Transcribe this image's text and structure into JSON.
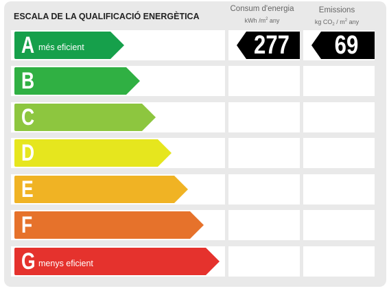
{
  "title": "ESCALA DE LA QUALIFICACIÓ ENERGÈTICA",
  "energy_header": {
    "title": "Consum d'energia",
    "unit_pre": "kWh /m",
    "unit_sup": "2",
    "unit_post": " any"
  },
  "emissions_header": {
    "title": "Emissions",
    "unit_pre": "kg CO",
    "unit_sub": "2",
    "unit_mid": " / m",
    "unit_sup": "2",
    "unit_post": " any"
  },
  "rating_rows": [
    {
      "letter": "A",
      "label": "més eficient",
      "color": "#16a04b"
    },
    {
      "letter": "B",
      "label": "",
      "color": "#30b043"
    },
    {
      "letter": "C",
      "label": "",
      "color": "#8dc63f"
    },
    {
      "letter": "D",
      "label": "",
      "color": "#e6e61e"
    },
    {
      "letter": "E",
      "label": "",
      "color": "#f0b324"
    },
    {
      "letter": "F",
      "label": "",
      "color": "#e6722b"
    },
    {
      "letter": "G",
      "label": "menys eficient",
      "color": "#e5322d"
    }
  ],
  "energy_consumption": {
    "value": "277",
    "rating": "A"
  },
  "emissions": {
    "value": "69",
    "rating": "A"
  },
  "badge_color": "#000000"
}
